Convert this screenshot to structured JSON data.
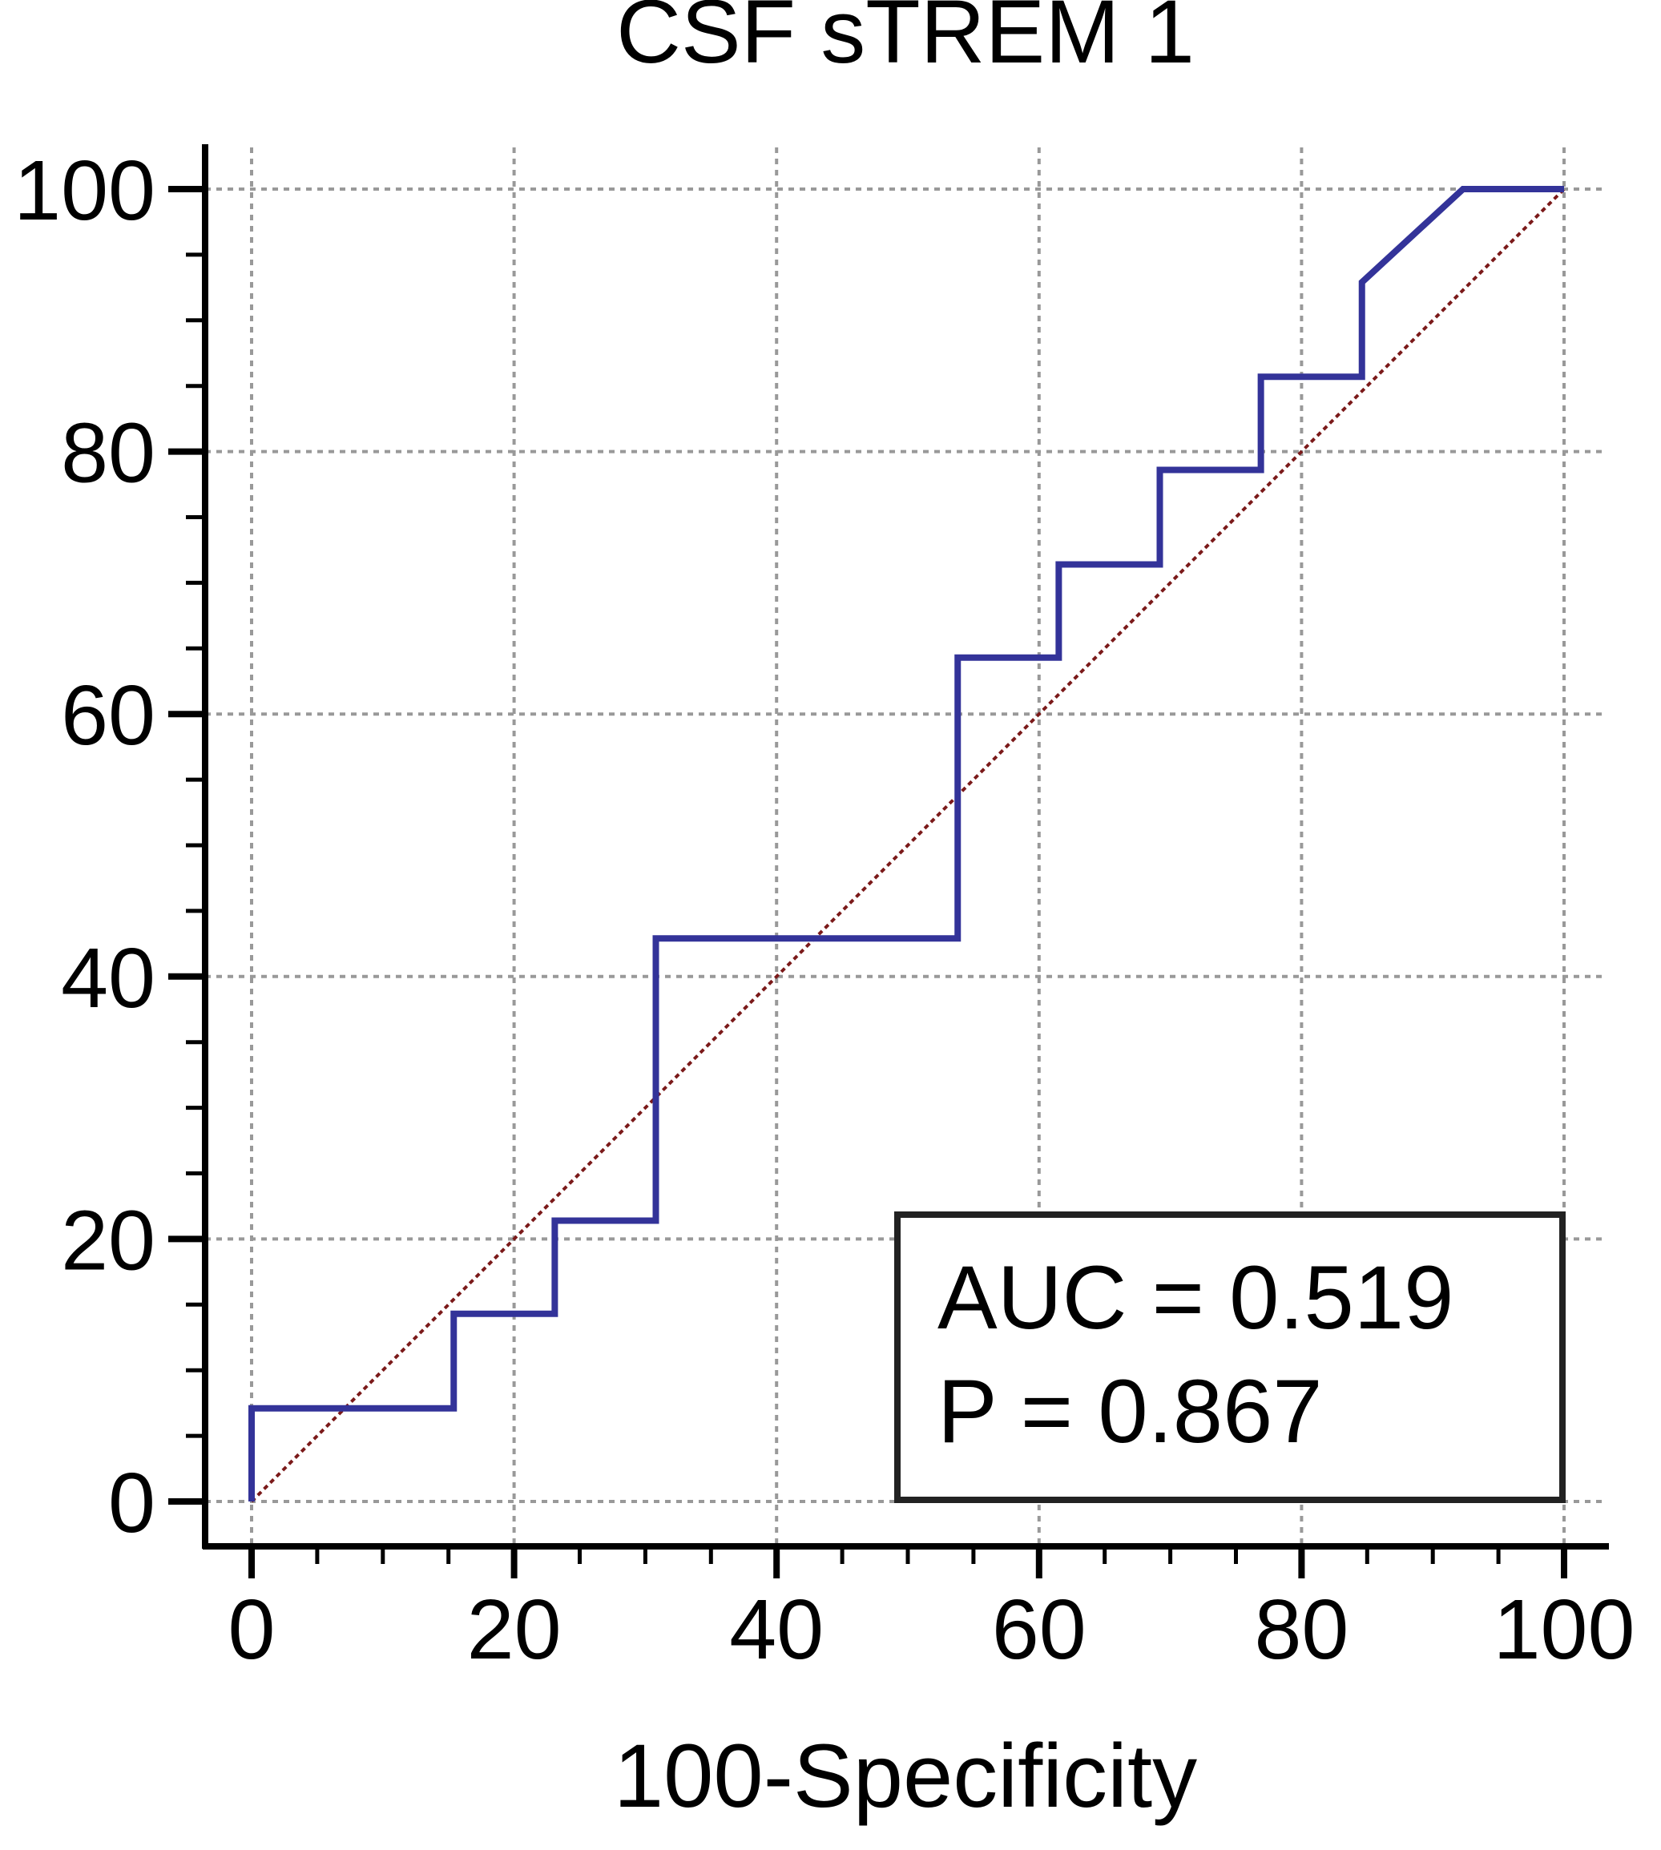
{
  "chart_data": {
    "type": "line",
    "title": "CSF sTREM 1",
    "xlabel": "100-Specificity",
    "ylabel": "",
    "xlim": [
      0,
      100
    ],
    "ylim": [
      0,
      100
    ],
    "x_ticks": [
      "0",
      "20",
      "40",
      "60",
      "80",
      "100"
    ],
    "y_ticks": [
      "0",
      "20",
      "40",
      "60",
      "80",
      "100"
    ],
    "grid": true,
    "series": [
      {
        "name": "",
        "color": "#333399",
        "points": [
          [
            0,
            0
          ],
          [
            0,
            7.1
          ],
          [
            15.4,
            7.1
          ],
          [
            15.4,
            14.3
          ],
          [
            23.1,
            14.3
          ],
          [
            23.1,
            21.4
          ],
          [
            30.8,
            21.4
          ],
          [
            30.8,
            42.9
          ],
          [
            53.8,
            42.9
          ],
          [
            53.8,
            64.3
          ],
          [
            61.5,
            64.3
          ],
          [
            61.5,
            71.4
          ],
          [
            69.2,
            71.4
          ],
          [
            69.2,
            78.6
          ],
          [
            76.9,
            78.6
          ],
          [
            76.9,
            85.7
          ],
          [
            84.6,
            85.7
          ],
          [
            84.6,
            92.9
          ],
          [
            92.3,
            100
          ],
          [
            100,
            100
          ]
        ]
      }
    ],
    "reference_line": {
      "from": [
        0,
        0
      ],
      "to": [
        100,
        100
      ],
      "color": "#7b1a1a",
      "style": "dotted"
    },
    "annotation": {
      "auc": "AUC = 0.519",
      "p": "P = 0.867"
    }
  }
}
